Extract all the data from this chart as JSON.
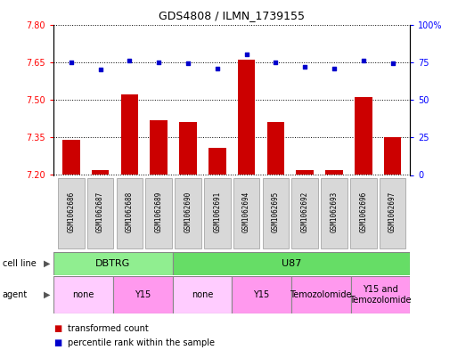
{
  "title": "GDS4808 / ILMN_1739155",
  "samples": [
    "GSM1062686",
    "GSM1062687",
    "GSM1062688",
    "GSM1062689",
    "GSM1062690",
    "GSM1062691",
    "GSM1062694",
    "GSM1062695",
    "GSM1062692",
    "GSM1062693",
    "GSM1062696",
    "GSM1062697"
  ],
  "bar_values": [
    7.34,
    7.22,
    7.52,
    7.42,
    7.41,
    7.31,
    7.66,
    7.41,
    7.22,
    7.22,
    7.51,
    7.35
  ],
  "dot_values": [
    75,
    70,
    76,
    75,
    74,
    71,
    80,
    75,
    72,
    71,
    76,
    74
  ],
  "ymin": 7.2,
  "ymax": 7.8,
  "y2min": 0,
  "y2max": 100,
  "yticks": [
    7.2,
    7.35,
    7.5,
    7.65,
    7.8
  ],
  "y2ticks": [
    0,
    25,
    50,
    75,
    100
  ],
  "cell_line_groups": [
    {
      "label": "DBTRG",
      "start": 0,
      "end": 4,
      "color": "#90EE90"
    },
    {
      "label": "U87",
      "start": 4,
      "end": 12,
      "color": "#66DD66"
    }
  ],
  "agent_groups": [
    {
      "label": "none",
      "start": 0,
      "end": 2,
      "color": "#FFCCFF"
    },
    {
      "label": "Y15",
      "start": 2,
      "end": 4,
      "color": "#FF99EE"
    },
    {
      "label": "none",
      "start": 4,
      "end": 6,
      "color": "#FFCCFF"
    },
    {
      "label": "Y15",
      "start": 6,
      "end": 8,
      "color": "#FF99EE"
    },
    {
      "label": "Temozolomide",
      "start": 8,
      "end": 10,
      "color": "#FF99EE"
    },
    {
      "label": "Y15 and\nTemozolomide",
      "start": 10,
      "end": 12,
      "color": "#FF99EE"
    }
  ],
  "bar_color": "#CC0000",
  "dot_color": "#0000CC",
  "bar_bottom": 7.2,
  "legend_bar_label": "transformed count",
  "legend_dot_label": "percentile rank within the sample",
  "cell_line_label": "cell line",
  "agent_label": "agent",
  "sample_box_color": "#D8D8D8",
  "sample_box_edge": "#999999"
}
